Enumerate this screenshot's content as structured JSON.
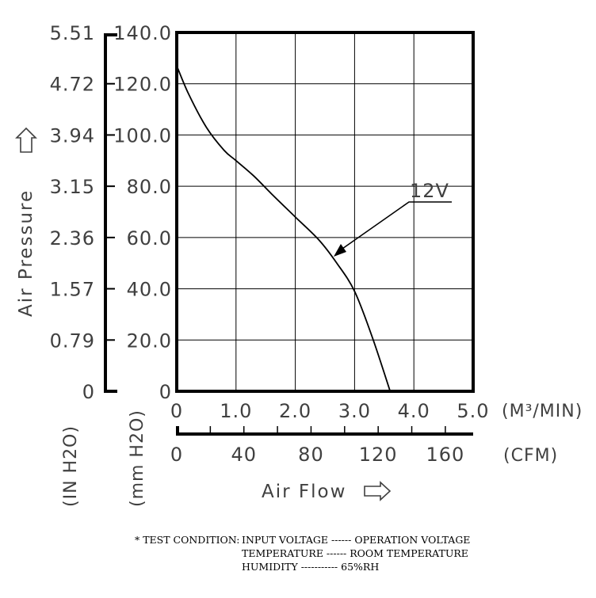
{
  "chart_data": {
    "type": "line",
    "x_unit_top": "(M³/MIN)",
    "x_unit_bottom": "(CFM)",
    "xlabel": "Air Flow",
    "ylabel": "Air Pressure",
    "y_unit_inner": "(mm H2O)",
    "y_unit_outer": "(IN H2O)",
    "xlim": [
      0,
      5.0
    ],
    "ylim": [
      0,
      140.0
    ],
    "x_ticks_m3min": [
      "0",
      "1.0",
      "2.0",
      "3.0",
      "4.0",
      "5.0"
    ],
    "x_ticks_cfm": [
      "0",
      "40",
      "80",
      "120",
      "160"
    ],
    "y_ticks_mmh2o": [
      "0",
      "20.0",
      "40.0",
      "60.0",
      "80.0",
      "100.0",
      "120.0",
      "140.0"
    ],
    "y_ticks_inh2o": [
      "0",
      "0.79",
      "1.57",
      "2.36",
      "3.15",
      "3.94",
      "4.72",
      "5.51"
    ],
    "grid": true,
    "series": [
      {
        "name": "12V",
        "x": [
          0,
          0.2,
          0.5,
          0.8,
          1.0,
          1.3,
          1.6,
          2.0,
          2.4,
          2.7,
          3.0,
          3.3,
          3.6
        ],
        "y": [
          127,
          116,
          103,
          94,
          90,
          84,
          77,
          68,
          59,
          50,
          39,
          21,
          0
        ]
      }
    ]
  },
  "test_condition": {
    "line1_label": "* TEST  CONDITION:",
    "line1": "INPUT VOLTAGE ------ OPERATION VOLTAGE",
    "line2": "TEMPERATURE ------ ROOM TEMPERATURE",
    "line3": "HUMIDITY ----------- 65%RH"
  }
}
